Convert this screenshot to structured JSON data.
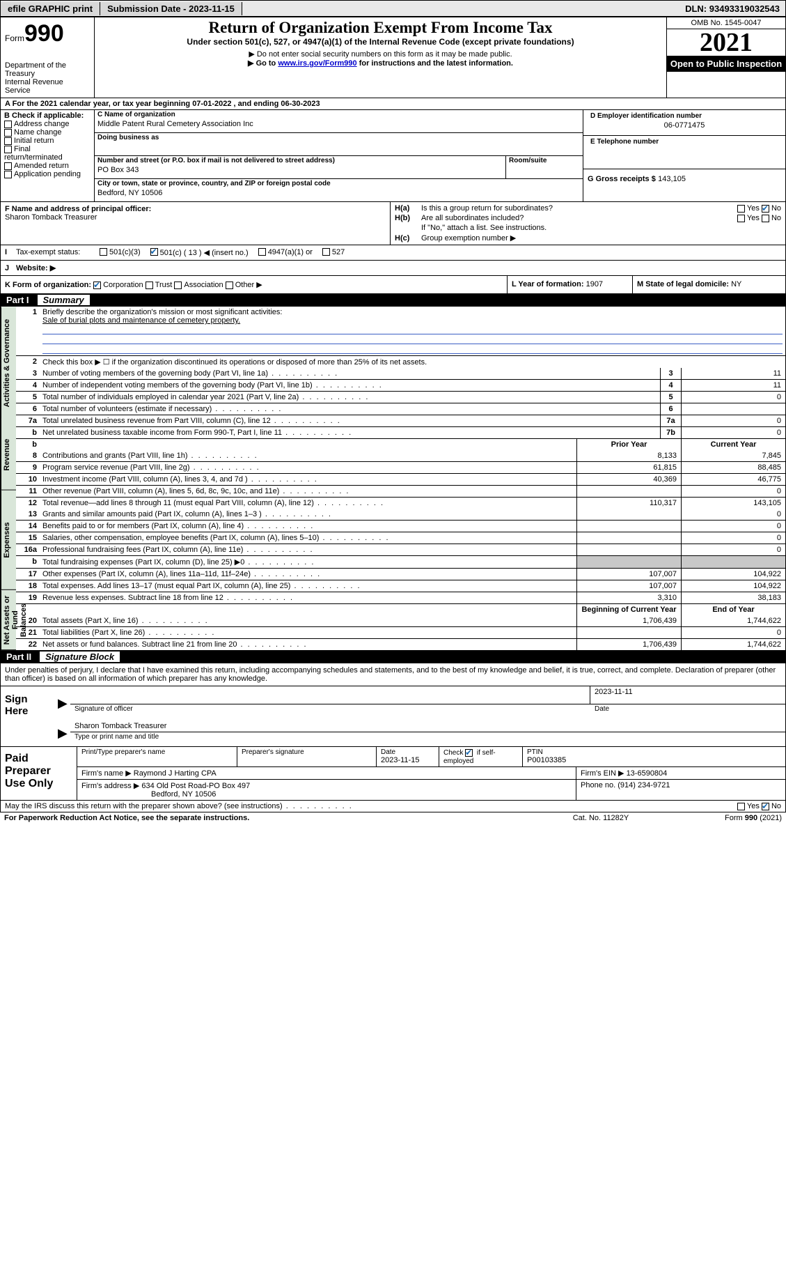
{
  "topbar": {
    "efile": "efile GRAPHIC print",
    "subdate_label": "Submission Date - ",
    "subdate": "2023-11-15",
    "dln_label": "DLN: ",
    "dln": "93493319032543"
  },
  "header": {
    "form_word": "Form",
    "form_no": "990",
    "dept": "Department of the Treasury",
    "irs": "Internal Revenue Service",
    "title": "Return of Organization Exempt From Income Tax",
    "sub1": "Under section 501(c), 527, or 4947(a)(1) of the Internal Revenue Code (except private foundations)",
    "sub2": "▶ Do not enter social security numbers on this form as it may be made public.",
    "sub3a": "▶ Go to ",
    "sub3_link": "www.irs.gov/Form990",
    "sub3b": " for instructions and the latest information.",
    "omb": "OMB No. 1545-0047",
    "year": "2021",
    "open": "Open to Public Inspection"
  },
  "rowA": {
    "text": "A For the 2021 calendar year, or tax year beginning 07-01-2022   , and ending 06-30-2023"
  },
  "B": {
    "label": "B Check if applicable:",
    "items": [
      "Address change",
      "Name change",
      "Initial return",
      "Final return/terminated",
      "Amended return",
      "Application pending"
    ]
  },
  "C": {
    "name_label": "C Name of organization",
    "name": "Middle Patent Rural Cemetery Association Inc",
    "dba_label": "Doing business as",
    "addr_label": "Number and street (or P.O. box if mail is not delivered to street address)",
    "room_label": "Room/suite",
    "addr": "PO Box 343",
    "city_label": "City or town, state or province, country, and ZIP or foreign postal code",
    "city": "Bedford, NY  10506"
  },
  "D": {
    "label": "D Employer identification number",
    "ein": "06-0771475"
  },
  "E": {
    "label": "E Telephone number"
  },
  "G": {
    "label": "G Gross receipts $",
    "val": "143,105"
  },
  "F": {
    "label": "F  Name and address of principal officer:",
    "name": "Sharon Tomback Treasurer"
  },
  "H": {
    "a": "Is this a group return for subordinates?",
    "b": "Are all subordinates included?",
    "b2": "If \"No,\" attach a list. See instructions.",
    "c": "Group exemption number ▶",
    "ha": "H(a)",
    "hb": "H(b)",
    "hc": "H(c)",
    "yes": "Yes",
    "no": "No"
  },
  "I": {
    "label": "Tax-exempt status:",
    "opts": [
      "501(c)(3)",
      "501(c) ( 13 ) ◀ (insert no.)",
      "4947(a)(1) or",
      "527"
    ]
  },
  "J": {
    "label": "Website: ▶"
  },
  "K": {
    "label": "K Form of organization:",
    "opts": [
      "Corporation",
      "Trust",
      "Association",
      "Other ▶"
    ]
  },
  "L": {
    "label": "L Year of formation:",
    "val": "1907"
  },
  "M": {
    "label": "M State of legal domicile:",
    "val": "NY"
  },
  "part1": {
    "num": "Part I",
    "title": "Summary"
  },
  "summary": {
    "vtabs": [
      "Activities & Governance",
      "Revenue",
      "Expenses",
      "Net Assets or Fund Balances"
    ],
    "l1": "Briefly describe the organization's mission or most significant activities:",
    "l1v": "Sale of burial plots and maintenance of cemetery property.",
    "l2": "Check this box ▶ ☐  if the organization discontinued its operations or disposed of more than 25% of its net assets.",
    "rows_gov": [
      {
        "n": "3",
        "d": "Number of voting members of the governing body (Part VI, line 1a)",
        "b": "3",
        "v": "11"
      },
      {
        "n": "4",
        "d": "Number of independent voting members of the governing body (Part VI, line 1b)",
        "b": "4",
        "v": "11"
      },
      {
        "n": "5",
        "d": "Total number of individuals employed in calendar year 2021 (Part V, line 2a)",
        "b": "5",
        "v": "0"
      },
      {
        "n": "6",
        "d": "Total number of volunteers (estimate if necessary)",
        "b": "6",
        "v": ""
      },
      {
        "n": "7a",
        "d": "Total unrelated business revenue from Part VIII, column (C), line 12",
        "b": "7a",
        "v": "0"
      },
      {
        "n": "b",
        "d": "Net unrelated business taxable income from Form 990-T, Part I, line 11",
        "b": "7b",
        "v": "0"
      }
    ],
    "hdr_prior": "Prior Year",
    "hdr_curr": "Current Year",
    "rows_rev": [
      {
        "n": "8",
        "d": "Contributions and grants (Part VIII, line 1h)",
        "p": "8,133",
        "c": "7,845"
      },
      {
        "n": "9",
        "d": "Program service revenue (Part VIII, line 2g)",
        "p": "61,815",
        "c": "88,485"
      },
      {
        "n": "10",
        "d": "Investment income (Part VIII, column (A), lines 3, 4, and 7d )",
        "p": "40,369",
        "c": "46,775"
      },
      {
        "n": "11",
        "d": "Other revenue (Part VIII, column (A), lines 5, 6d, 8c, 9c, 10c, and 11e)",
        "p": "",
        "c": "0"
      },
      {
        "n": "12",
        "d": "Total revenue—add lines 8 through 11 (must equal Part VIII, column (A), line 12)",
        "p": "110,317",
        "c": "143,105"
      }
    ],
    "rows_exp": [
      {
        "n": "13",
        "d": "Grants and similar amounts paid (Part IX, column (A), lines 1–3 )",
        "p": "",
        "c": "0"
      },
      {
        "n": "14",
        "d": "Benefits paid to or for members (Part IX, column (A), line 4)",
        "p": "",
        "c": "0"
      },
      {
        "n": "15",
        "d": "Salaries, other compensation, employee benefits (Part IX, column (A), lines 5–10)",
        "p": "",
        "c": "0"
      },
      {
        "n": "16a",
        "d": "Professional fundraising fees (Part IX, column (A), line 11e)",
        "p": "",
        "c": "0"
      },
      {
        "n": "b",
        "d": "Total fundraising expenses (Part IX, column (D), line 25) ▶0",
        "p": "",
        "c": "",
        "gray": true
      },
      {
        "n": "17",
        "d": "Other expenses (Part IX, column (A), lines 11a–11d, 11f–24e)",
        "p": "107,007",
        "c": "104,922"
      },
      {
        "n": "18",
        "d": "Total expenses. Add lines 13–17 (must equal Part IX, column (A), line 25)",
        "p": "107,007",
        "c": "104,922"
      },
      {
        "n": "19",
        "d": "Revenue less expenses. Subtract line 18 from line 12",
        "p": "3,310",
        "c": "38,183"
      }
    ],
    "hdr_beg": "Beginning of Current Year",
    "hdr_end": "End of Year",
    "rows_net": [
      {
        "n": "20",
        "d": "Total assets (Part X, line 16)",
        "p": "1,706,439",
        "c": "1,744,622"
      },
      {
        "n": "21",
        "d": "Total liabilities (Part X, line 26)",
        "p": "",
        "c": "0"
      },
      {
        "n": "22",
        "d": "Net assets or fund balances. Subtract line 21 from line 20",
        "p": "1,706,439",
        "c": "1,744,622"
      }
    ]
  },
  "part2": {
    "num": "Part II",
    "title": "Signature Block"
  },
  "sig": {
    "instr": "Under penalties of perjury, I declare that I have examined this return, including accompanying schedules and statements, and to the best of my knowledge and belief, it is true, correct, and complete. Declaration of preparer (other than officer) is based on all information of which preparer has any knowledge.",
    "sign_here": "Sign Here",
    "sig_of": "Signature of officer",
    "date": "Date",
    "date_v": "2023-11-11",
    "name": "Sharon Tomback  Treasurer",
    "name_lbl": "Type or print name and title"
  },
  "prep": {
    "title": "Paid Preparer Use Only",
    "h": [
      "Print/Type preparer's name",
      "Preparer's signature",
      "Date",
      "",
      "PTIN"
    ],
    "date": "2023-11-15",
    "check_lbl": "Check ",
    "check2": " if self-employed",
    "ptin": "P00103385",
    "firm_lbl": "Firm's name    ▶",
    "firm": "Raymond J Harting CPA",
    "ein_lbl": "Firm's EIN ▶",
    "ein": "13-6590804",
    "addr_lbl": "Firm's address ▶",
    "addr1": "634 Old Post Road-PO Box 497",
    "addr2": "Bedford, NY  10506",
    "phone_lbl": "Phone no.",
    "phone": "(914) 234-9721"
  },
  "footer": {
    "q": "May the IRS discuss this return with the preparer shown above? (see instructions)",
    "yes": "Yes",
    "no": "No",
    "pra": "For Paperwork Reduction Act Notice, see the separate instructions.",
    "cat": "Cat. No. 11282Y",
    "form": "Form 990 (2021)"
  }
}
